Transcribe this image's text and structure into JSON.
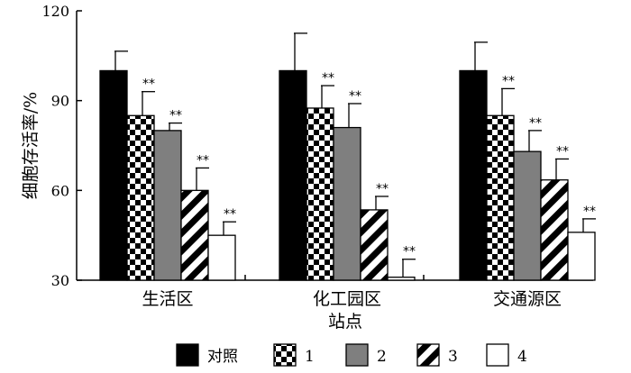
{
  "chart_data": {
    "type": "bar",
    "title": "",
    "xlabel": "站点",
    "ylabel": "细胞存活率/%",
    "ylim": [
      30,
      120
    ],
    "yticks": [
      30,
      60,
      90,
      120
    ],
    "grid": false,
    "legend_position": "bottom",
    "categories": [
      "生活区",
      "化工园区",
      "交通源区"
    ],
    "series": [
      {
        "name": "对照",
        "pattern": "solid-black",
        "values": [
          100,
          100,
          100
        ],
        "errors": [
          6.5,
          12.5,
          9.5
        ],
        "annotations": [
          "",
          "",
          ""
        ]
      },
      {
        "name": "1",
        "pattern": "checkerboard",
        "values": [
          85,
          87.5,
          85
        ],
        "errors": [
          8,
          7.5,
          9
        ],
        "annotations": [
          "**",
          "**",
          "**"
        ]
      },
      {
        "name": "2",
        "pattern": "solid-gray",
        "values": [
          80,
          81,
          73
        ],
        "errors": [
          2.5,
          8,
          7
        ],
        "annotations": [
          "**",
          "**",
          "**"
        ]
      },
      {
        "name": "3",
        "pattern": "diagonal-stripes",
        "values": [
          60,
          53.5,
          63.5
        ],
        "errors": [
          7.5,
          4.5,
          7
        ],
        "annotations": [
          "**",
          "**",
          "**"
        ]
      },
      {
        "name": "4",
        "pattern": "white",
        "values": [
          45,
          31,
          46
        ],
        "errors": [
          4.5,
          6,
          4.5
        ],
        "annotations": [
          "**",
          "**",
          "**"
        ]
      }
    ],
    "colors": {
      "black": "#000000",
      "gray": "#7f7f7f",
      "white": "#ffffff"
    }
  }
}
